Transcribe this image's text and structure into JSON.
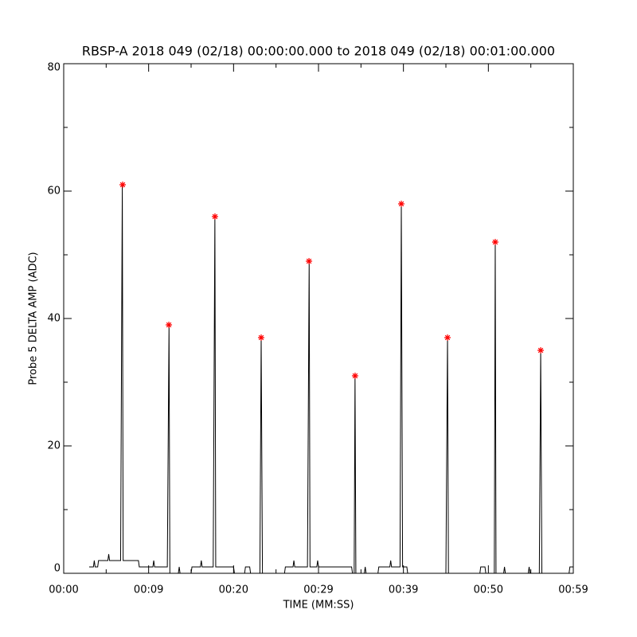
{
  "chart_data": {
    "type": "line",
    "title": "RBSP-A 2018 049 (02/18) 00:00:00.000 to 2018 049 (02/18) 00:01:00.000",
    "xlabel": "TIME (MM:SS)",
    "ylabel": "Probe 5 DELTA AMP (ADC)",
    "xlim": [
      0,
      60
    ],
    "ylim": [
      0,
      80
    ],
    "xticks": [
      {
        "value": 0,
        "label": "00:00"
      },
      {
        "value": 10,
        "label": "00:09"
      },
      {
        "value": 20,
        "label": "00:20"
      },
      {
        "value": 30,
        "label": "00:29"
      },
      {
        "value": 40,
        "label": "00:39"
      },
      {
        "value": 50,
        "label": "00:50"
      },
      {
        "value": 60,
        "label": "00:59"
      }
    ],
    "xminorticks": [
      5,
      15,
      25,
      35,
      45,
      55
    ],
    "yticks": [
      0,
      20,
      40,
      60,
      80
    ],
    "yminorticks": [
      10,
      30,
      50,
      70
    ],
    "series": [
      {
        "color": "#000000",
        "x": [
          3.0,
          3.5,
          3.6,
          3.7,
          4.0,
          4.1,
          5.2,
          5.3,
          5.4,
          6.7,
          6.9,
          7.0,
          8.8,
          8.9,
          10.0,
          10.5,
          10.6,
          10.7,
          12.2,
          12.4,
          12.5,
          13.5,
          13.6,
          13.7,
          15.0,
          15.1,
          16.1,
          16.2,
          16.3,
          17.6,
          17.8,
          17.9,
          20.0,
          20.1,
          21.3,
          21.4,
          21.9,
          22.0,
          23.1,
          23.25,
          23.4,
          26.0,
          26.1,
          27.0,
          27.1,
          27.2,
          28.7,
          28.9,
          29.0,
          29.8,
          29.9,
          30.0,
          33.9,
          34.0,
          34.2,
          34.3,
          34.4,
          35.4,
          35.5,
          35.6,
          37.0,
          37.1,
          38.4,
          38.5,
          38.6,
          39.6,
          39.75,
          39.9,
          40.4,
          40.5,
          45.0,
          45.19,
          45.3,
          49.0,
          49.1,
          49.6,
          49.7,
          50.7,
          50.81,
          50.9,
          51.8,
          51.9,
          52.0,
          54.7,
          54.8,
          54.9,
          56.0,
          56.16,
          56.3,
          59.5,
          59.6,
          60.0
        ],
        "values": [
          1,
          1,
          2,
          1,
          1,
          2,
          2,
          3,
          2,
          2,
          61,
          2,
          2,
          1,
          1,
          1,
          2,
          1,
          1,
          39,
          0,
          0,
          1,
          0,
          0,
          1,
          1,
          2,
          1,
          1,
          56,
          1,
          1,
          0,
          0,
          1,
          1,
          0,
          0,
          37,
          0,
          0,
          1,
          1,
          2,
          1,
          1,
          49,
          1,
          1,
          2,
          1,
          1,
          0,
          0,
          31,
          0,
          0,
          1,
          0,
          0,
          1,
          1,
          2,
          1,
          1,
          58,
          1,
          1,
          0,
          0,
          37,
          0,
          0,
          1,
          1,
          0,
          0,
          52,
          0,
          0,
          1,
          0,
          0,
          1,
          0,
          0,
          35,
          0,
          0,
          1,
          1
        ]
      },
      {
        "color": "#ff0000",
        "marker": "asterisk",
        "x": [
          6.94,
          12.38,
          17.81,
          23.25,
          28.88,
          34.31,
          39.75,
          45.19,
          50.81,
          56.16
        ],
        "values": [
          61,
          39,
          56,
          37,
          49,
          31,
          58,
          37,
          52,
          35
        ]
      }
    ]
  }
}
